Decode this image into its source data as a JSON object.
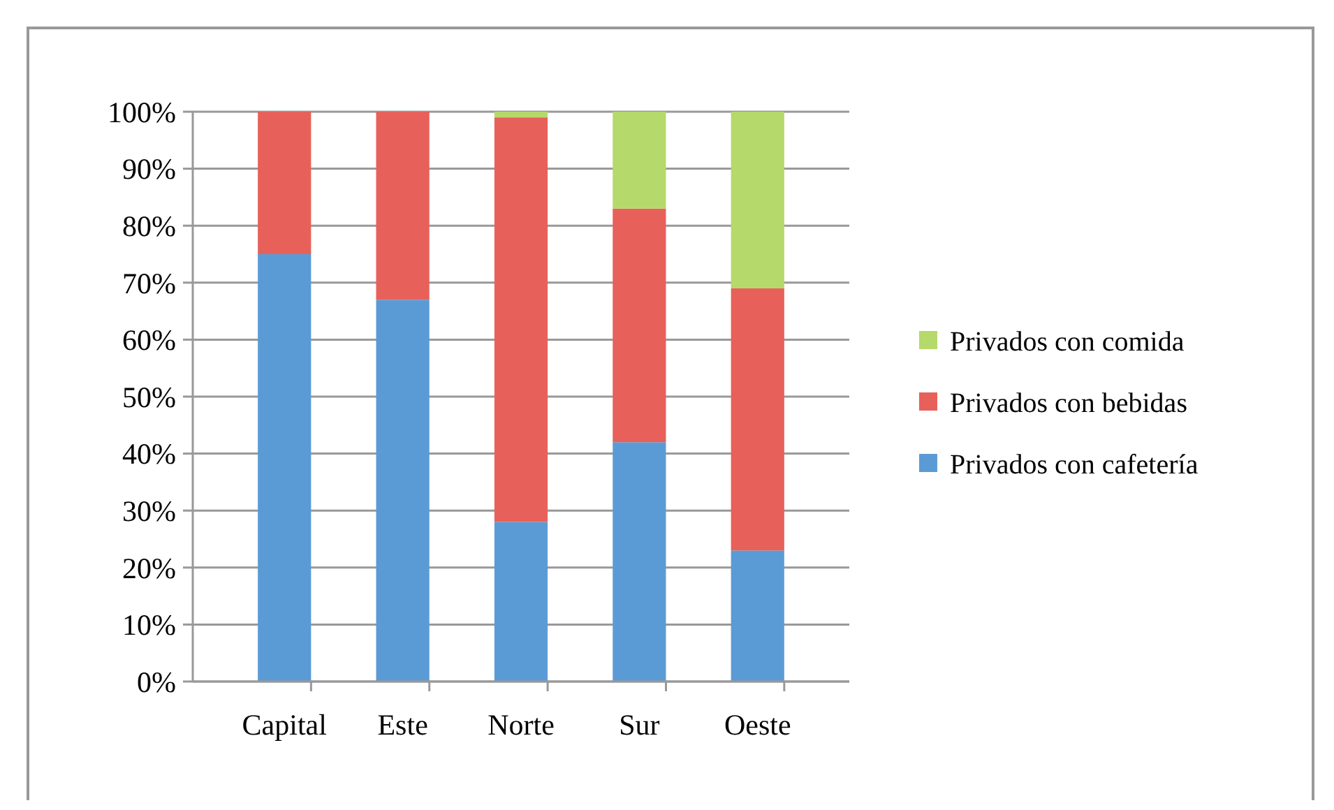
{
  "chart_data": {
    "type": "bar",
    "stacked": true,
    "categories": [
      "Capital",
      "Este",
      "Norte",
      "Sur",
      "Oeste"
    ],
    "series": [
      {
        "name": "Privados con cafetería",
        "color": "#5b9bd5",
        "values": [
          75,
          67,
          28,
          42,
          23
        ]
      },
      {
        "name": "Privados con bebidas",
        "color": "#e8605a",
        "values": [
          25,
          33,
          71,
          41,
          46
        ]
      },
      {
        "name": "Privados con comida",
        "color": "#b5d96a",
        "values": [
          0,
          0,
          1,
          17,
          31
        ]
      }
    ],
    "ylim": [
      0,
      100
    ],
    "yticks": [
      {
        "value": 0,
        "label": "0%"
      },
      {
        "value": 10,
        "label": "10%"
      },
      {
        "value": 20,
        "label": "20%"
      },
      {
        "value": 30,
        "label": "30%"
      },
      {
        "value": 40,
        "label": "40%"
      },
      {
        "value": 50,
        "label": "50%"
      },
      {
        "value": 60,
        "label": "60%"
      },
      {
        "value": 70,
        "label": "70%"
      },
      {
        "value": 80,
        "label": "80%"
      },
      {
        "value": 90,
        "label": "90%"
      },
      {
        "value": 100,
        "label": "100%"
      }
    ],
    "grid": "y",
    "legend": "right"
  }
}
